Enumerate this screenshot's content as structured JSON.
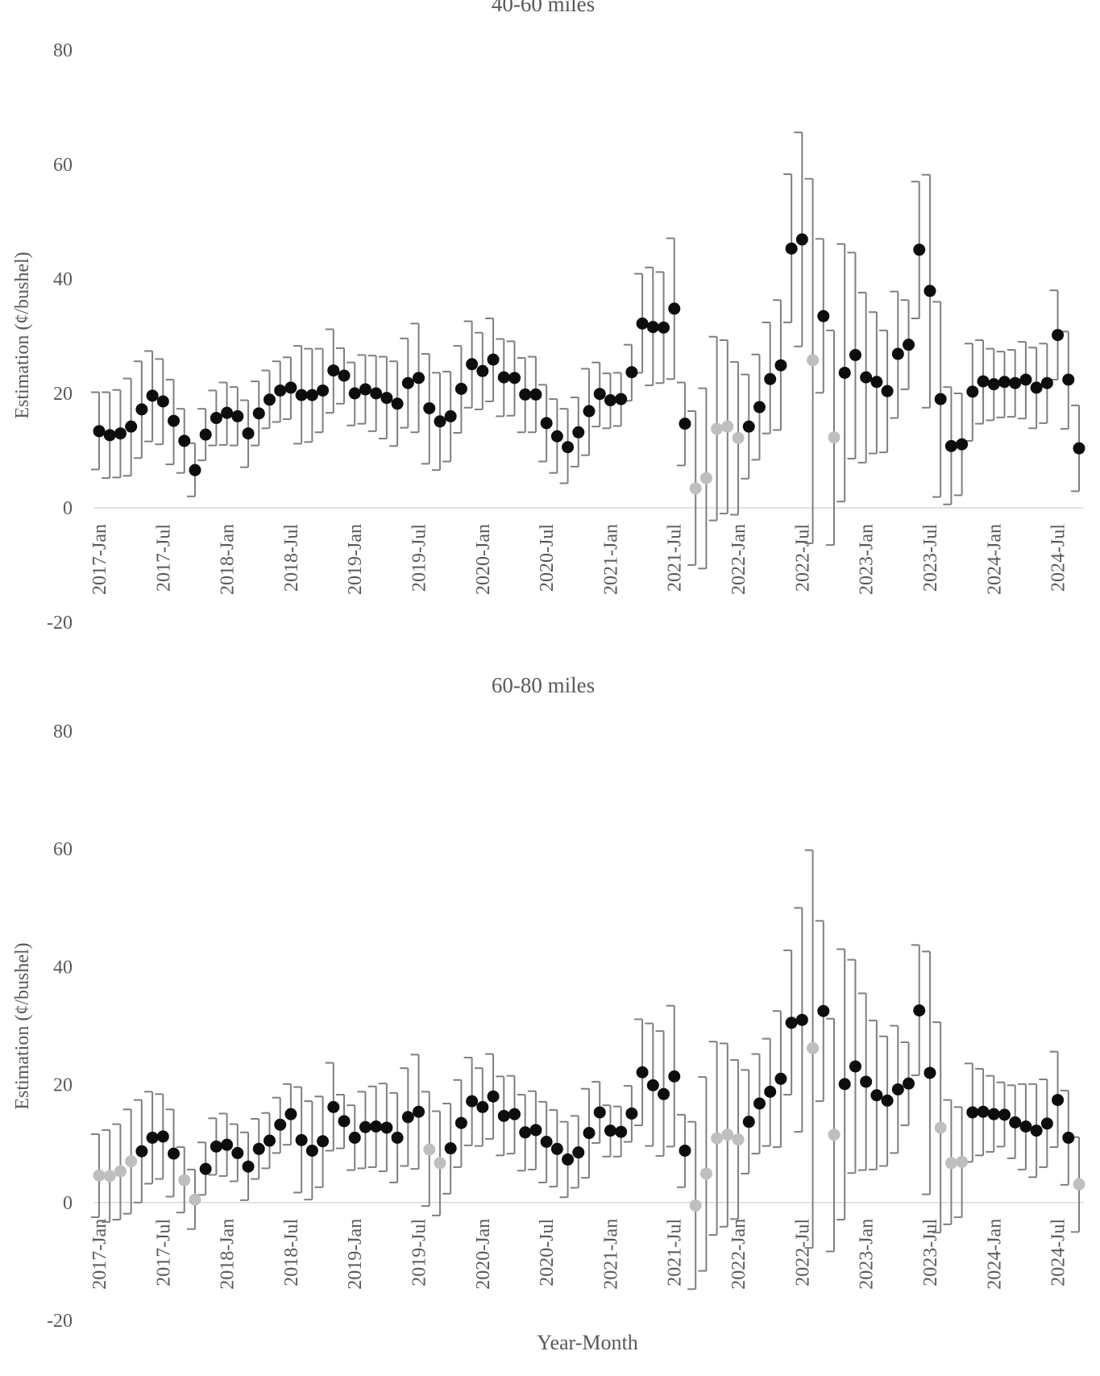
{
  "chart_data": [
    {
      "type": "scatter",
      "title": "40-60 miles",
      "xlabel": "",
      "ylabel": "Estimation (¢/bushel)",
      "ylim": [
        -20,
        80
      ],
      "yticks": [
        -20,
        0,
        20,
        40,
        60,
        80
      ],
      "x_start": "2017-Jan",
      "x_tick_labels": [
        "2017-Jan",
        "2017-Jul",
        "2018-Jan",
        "2018-Jul",
        "2019-Jan",
        "2019-Jul",
        "2020-Jan",
        "2020-Jul",
        "2021-Jan",
        "2021-Jul",
        "2022-Jan",
        "2022-Jul",
        "2023-Jan",
        "2023-Jul",
        "2024-Jan",
        "2024-Jul"
      ],
      "grid": false,
      "estimate": [
        13.4,
        12.7,
        13.0,
        14.2,
        17.2,
        19.6,
        18.6,
        15.2,
        11.7,
        6.6,
        12.8,
        15.7,
        16.6,
        16.0,
        13.0,
        16.5,
        18.9,
        20.5,
        21.0,
        19.7,
        19.7,
        20.5,
        24.0,
        23.1,
        20.0,
        20.7,
        20.0,
        19.2,
        18.2,
        21.8,
        22.7,
        17.4,
        15.1,
        16.0,
        20.8,
        25.1,
        23.9,
        25.9,
        22.8,
        22.7,
        19.8,
        19.8,
        14.8,
        12.5,
        10.6,
        13.2,
        16.9,
        19.9,
        18.8,
        19.0,
        23.7,
        32.2,
        31.6,
        31.5,
        34.8,
        14.7,
        3.4,
        5.2,
        13.8,
        14.2,
        12.2,
        14.2,
        17.6,
        22.5,
        24.9,
        45.3,
        46.9,
        25.8,
        33.5,
        12.3,
        23.6,
        26.7,
        22.8,
        22.0,
        20.4,
        26.9,
        28.5,
        45.1,
        37.9,
        19.0,
        10.8,
        11.1,
        20.3,
        22.1,
        21.6,
        22.0,
        21.8,
        22.4,
        21.0,
        21.8,
        30.2,
        22.4,
        10.4
      ],
      "lower": [
        6.7,
        5.2,
        5.3,
        5.6,
        8.7,
        11.6,
        11.1,
        7.6,
        6.1,
        2.0,
        8.3,
        10.9,
        11.0,
        10.9,
        7.1,
        10.9,
        13.9,
        15.0,
        15.5,
        11.2,
        11.5,
        13.2,
        16.6,
        18.2,
        14.4,
        14.7,
        13.4,
        12.1,
        10.8,
        14.0,
        13.2,
        7.7,
        6.6,
        8.1,
        13.1,
        17.5,
        17.2,
        18.6,
        16.0,
        16.1,
        13.2,
        13.2,
        8.1,
        6.1,
        4.3,
        7.2,
        9.2,
        14.2,
        13.9,
        14.3,
        18.7,
        23.6,
        21.4,
        21.8,
        22.5,
        7.4,
        -10.0,
        -10.6,
        -2.2,
        -1.0,
        -1.2,
        5.1,
        8.4,
        13.0,
        13.6,
        32.4,
        28.2,
        -6.2,
        20.1,
        -6.5,
        1.1,
        8.6,
        7.9,
        9.5,
        9.7,
        15.7,
        20.7,
        33.1,
        17.5,
        1.9,
        0.6,
        2.2,
        11.7,
        14.7,
        15.3,
        15.8,
        15.9,
        15.6,
        13.9,
        14.8,
        22.4,
        13.8,
        2.9
      ],
      "upper": [
        20.2,
        20.2,
        20.6,
        22.6,
        25.6,
        27.4,
        26.0,
        22.4,
        17.3,
        11.3,
        17.3,
        20.5,
        21.9,
        21.1,
        18.8,
        22.1,
        24.0,
        25.6,
        26.3,
        28.3,
        27.8,
        27.8,
        31.2,
        27.9,
        25.4,
        26.7,
        26.6,
        26.4,
        25.6,
        29.6,
        32.2,
        26.9,
        23.6,
        23.8,
        28.3,
        32.6,
        30.6,
        33.1,
        29.5,
        29.1,
        26.2,
        26.4,
        21.5,
        19.0,
        17.3,
        19.3,
        24.3,
        25.4,
        23.5,
        23.6,
        28.5,
        40.9,
        42.0,
        41.2,
        47.1,
        21.9,
        16.9,
        20.9,
        29.9,
        29.3,
        25.5,
        23.3,
        26.8,
        32.4,
        36.3,
        58.3,
        65.6,
        57.5,
        47.0,
        31.0,
        46.1,
        44.6,
        37.6,
        34.2,
        31.0,
        37.8,
        36.3,
        57.0,
        58.2,
        36.0,
        21.1,
        20.0,
        28.7,
        29.3,
        27.8,
        27.3,
        27.6,
        29.0,
        28.0,
        28.7,
        38.0,
        30.8,
        17.9
      ],
      "muted_point_indices": [
        56,
        57,
        58,
        59,
        60,
        67,
        69
      ],
      "colors": {
        "point": "#0d0d0d",
        "muted_point": "#bfbfbf",
        "error_bar": "#7f7f7f",
        "axis": "#d9d9d9",
        "text": "#595959"
      }
    },
    {
      "type": "scatter",
      "title": "60-80 miles",
      "xlabel": "Year-Month",
      "ylabel": "Estimation (¢/bushel)",
      "ylim": [
        -20,
        80
      ],
      "yticks": [
        -20,
        0,
        20,
        40,
        60,
        80
      ],
      "x_start": "2017-Jan",
      "x_tick_labels": [
        "2017-Jan",
        "2017-Jul",
        "2018-Jan",
        "2018-Jul",
        "2019-Jan",
        "2019-Jul",
        "2020-Jan",
        "2020-Jul",
        "2021-Jan",
        "2021-Jul",
        "2022-Jan",
        "2022-Jul",
        "2023-Jan",
        "2023-Jul",
        "2024-Jan",
        "2024-Jul"
      ],
      "grid": false,
      "estimate": [
        4.6,
        4.5,
        5.3,
        7.0,
        8.7,
        11.0,
        11.2,
        8.3,
        3.8,
        0.5,
        5.7,
        9.5,
        9.8,
        8.4,
        6.1,
        9.1,
        10.5,
        13.2,
        15.0,
        10.6,
        8.8,
        10.4,
        16.2,
        13.8,
        11.0,
        12.8,
        12.9,
        12.7,
        11.0,
        14.5,
        15.4,
        9.0,
        6.7,
        9.2,
        13.5,
        17.2,
        16.2,
        18.0,
        14.7,
        15.0,
        11.9,
        12.3,
        10.3,
        9.1,
        7.3,
        8.5,
        11.8,
        15.3,
        12.2,
        12.0,
        15.1,
        22.1,
        19.9,
        18.4,
        21.4,
        8.8,
        -0.5,
        4.9,
        10.9,
        11.5,
        10.7,
        13.7,
        16.8,
        18.8,
        21.0,
        30.5,
        31.0,
        26.2,
        32.5,
        11.5,
        20.1,
        23.1,
        20.5,
        18.2,
        17.3,
        19.2,
        20.2,
        32.6,
        22.0,
        12.7,
        6.7,
        6.9,
        15.3,
        15.4,
        15.0,
        14.9,
        13.6,
        12.9,
        12.2,
        13.4,
        17.4,
        11.0,
        3.1
      ],
      "lower": [
        -2.5,
        -3.3,
        -2.9,
        -1.9,
        0.0,
        3.2,
        4.0,
        1.0,
        -1.7,
        -4.5,
        1.3,
        4.7,
        4.5,
        3.6,
        0.4,
        4.0,
        5.8,
        8.4,
        9.8,
        1.7,
        0.5,
        2.6,
        8.8,
        9.2,
        5.5,
        5.8,
        6.0,
        5.3,
        3.4,
        6.2,
        5.7,
        -0.6,
        -2.2,
        1.5,
        6.0,
        9.7,
        9.6,
        10.8,
        8.0,
        8.3,
        5.4,
        5.6,
        3.4,
        2.7,
        0.9,
        2.5,
        4.2,
        10.1,
        7.8,
        7.8,
        10.3,
        13.1,
        9.6,
        7.9,
        9.5,
        2.6,
        -14.7,
        -11.6,
        -5.5,
        -4.1,
        -2.8,
        4.9,
        8.3,
        9.6,
        9.4,
        18.3,
        12.0,
        -7.7,
        17.2,
        -8.3,
        -2.9,
        5.0,
        5.5,
        5.6,
        6.2,
        8.4,
        13.1,
        21.6,
        1.4,
        -5.1,
        -3.7,
        -2.5,
        6.9,
        8.0,
        8.6,
        9.5,
        7.5,
        5.6,
        4.3,
        6.0,
        9.4,
        3.0,
        -5.0
      ],
      "upper": [
        11.6,
        12.3,
        13.3,
        15.8,
        17.4,
        18.8,
        18.4,
        15.8,
        9.4,
        5.6,
        10.2,
        14.3,
        15.1,
        13.3,
        11.9,
        14.2,
        15.2,
        17.8,
        20.1,
        19.6,
        17.2,
        18.0,
        23.7,
        18.3,
        16.5,
        18.8,
        19.7,
        20.2,
        18.6,
        22.8,
        25.1,
        18.8,
        15.5,
        16.8,
        20.8,
        24.6,
        22.8,
        25.2,
        21.4,
        21.5,
        18.3,
        18.9,
        17.1,
        15.7,
        13.7,
        14.7,
        19.3,
        20.5,
        16.5,
        16.3,
        19.8,
        31.1,
        30.4,
        29.1,
        33.4,
        14.9,
        13.7,
        21.3,
        27.3,
        27.0,
        24.2,
        22.5,
        25.2,
        27.8,
        32.5,
        42.8,
        50.0,
        59.8,
        47.8,
        31.2,
        43.0,
        41.2,
        35.5,
        30.9,
        28.2,
        30.0,
        27.2,
        43.7,
        42.6,
        30.6,
        17.4,
        16.2,
        23.6,
        22.7,
        21.5,
        20.4,
        19.9,
        20.1,
        20.1,
        20.9,
        25.6,
        19.0,
        11.1
      ],
      "muted_point_indices": [
        0,
        1,
        2,
        3,
        8,
        9,
        31,
        32,
        56,
        57,
        58,
        59,
        60,
        67,
        69,
        79,
        80,
        81,
        92
      ],
      "colors": {
        "point": "#0d0d0d",
        "muted_point": "#bfbfbf",
        "error_bar": "#7f7f7f",
        "axis": "#d9d9d9",
        "text": "#595959"
      }
    }
  ]
}
